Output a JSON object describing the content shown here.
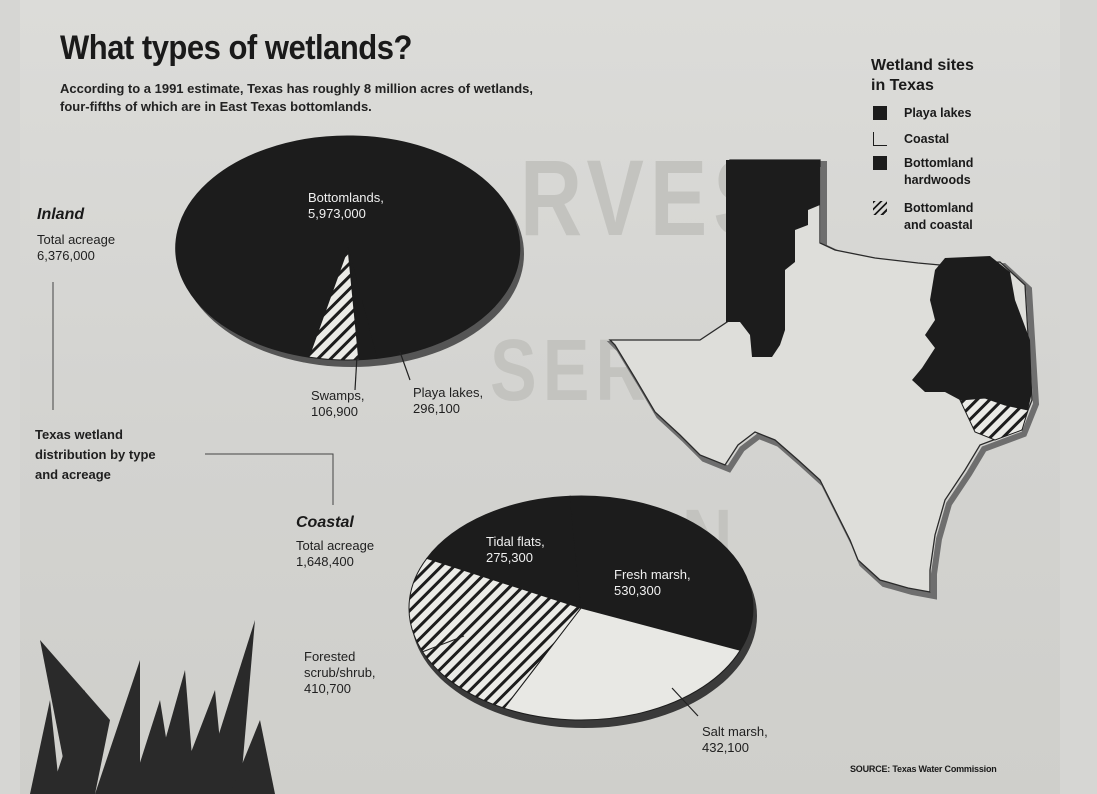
{
  "title": "What types of wetlands?",
  "subtitle_line1": "According to a 1991 estimate, Texas has roughly 8 million acres of wetlands,",
  "subtitle_line2": "four-fifths of which are in East Texas bottomlands.",
  "distribution_label": [
    "Texas wetland",
    "distribution by type",
    "and acreage"
  ],
  "legend": {
    "title": [
      "Wetland sites",
      "in Texas"
    ],
    "items": [
      {
        "label": [
          "Playa lakes"
        ],
        "swatch": "solid"
      },
      {
        "label": [
          "Coastal"
        ],
        "swatch": "corner"
      },
      {
        "label": [
          "Bottomland",
          "hardwoods"
        ],
        "swatch": "solid"
      },
      {
        "label": [
          "Bottomland",
          "and coastal"
        ],
        "swatch": "hatched"
      }
    ]
  },
  "source": "SOURCE: Texas Water Commission",
  "colors": {
    "dark": "#1c1c1c",
    "light": "#e8e8e4",
    "hatch": "#1c1c1c"
  },
  "chart_data": [
    {
      "type": "pie",
      "title": "Inland",
      "total_label": [
        "Total acreage",
        "6,376,000"
      ],
      "slices": [
        {
          "name": "Bottomlands",
          "label": [
            "Bottomlands,",
            "5,973,000"
          ],
          "value": 5973000,
          "fill": "dark"
        },
        {
          "name": "Swamps",
          "label": [
            "Swamps,",
            "106,900"
          ],
          "value": 106900,
          "fill": "dark"
        },
        {
          "name": "Playa lakes",
          "label": [
            "Playa lakes,",
            "296,100"
          ],
          "value": 296100,
          "fill": "hatched"
        }
      ]
    },
    {
      "type": "pie",
      "title": "Coastal",
      "total_label": [
        "Total acreage",
        "1,648,400"
      ],
      "slices": [
        {
          "name": "Tidal flats",
          "label": [
            "Tidal flats,",
            "275,300"
          ],
          "value": 275300,
          "fill": "dark"
        },
        {
          "name": "Fresh marsh",
          "label": [
            "Fresh marsh,",
            "530,300"
          ],
          "value": 530300,
          "fill": "dark"
        },
        {
          "name": "Salt marsh",
          "label": [
            "Salt marsh,",
            "432,100"
          ],
          "value": 432100,
          "fill": "light"
        },
        {
          "name": "Forested scrub/shrub",
          "label": [
            "Forested",
            "scrub/shrub,",
            "410,700"
          ],
          "value": 410700,
          "fill": "hatched"
        }
      ]
    }
  ]
}
